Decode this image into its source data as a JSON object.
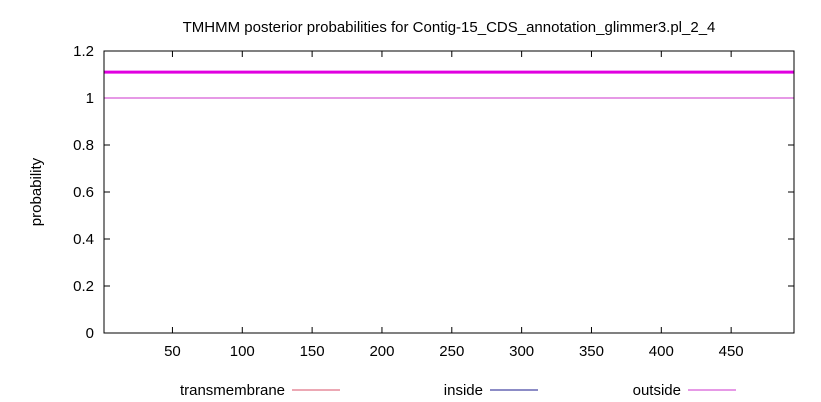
{
  "chart_data": {
    "type": "line",
    "title": "TMHMM posterior probabilities for Contig-15_CDS_annotation_glimmer3.pl_2_4",
    "xlabel": "",
    "ylabel": "probability",
    "xlim": [
      1,
      495
    ],
    "ylim": [
      0,
      1.2
    ],
    "x_ticks": [
      50,
      100,
      150,
      200,
      250,
      300,
      350,
      400,
      450
    ],
    "y_ticks": [
      0,
      0.2,
      0.4,
      0.6,
      0.8,
      1,
      1.2
    ],
    "y_tick_labels": [
      "0",
      "0.2",
      "0.4",
      "0.6",
      "0.8",
      "1",
      "1.2"
    ],
    "grid": false,
    "legend_position": "bottom",
    "series": [
      {
        "name": "transmembrane",
        "color": "#d9506a",
        "x": [
          1,
          495
        ],
        "values": [
          0,
          0
        ]
      },
      {
        "name": "inside",
        "color": "#1a1a8c",
        "x": [
          1,
          495
        ],
        "values": [
          0,
          0
        ]
      },
      {
        "name": "outside",
        "color": "#cc33cc",
        "x": [
          1,
          495
        ],
        "values": [
          1,
          1
        ]
      }
    ],
    "topology_bar": {
      "label": "outside",
      "color": "#e000e0",
      "y": 1.11,
      "x": [
        1,
        495
      ]
    }
  }
}
